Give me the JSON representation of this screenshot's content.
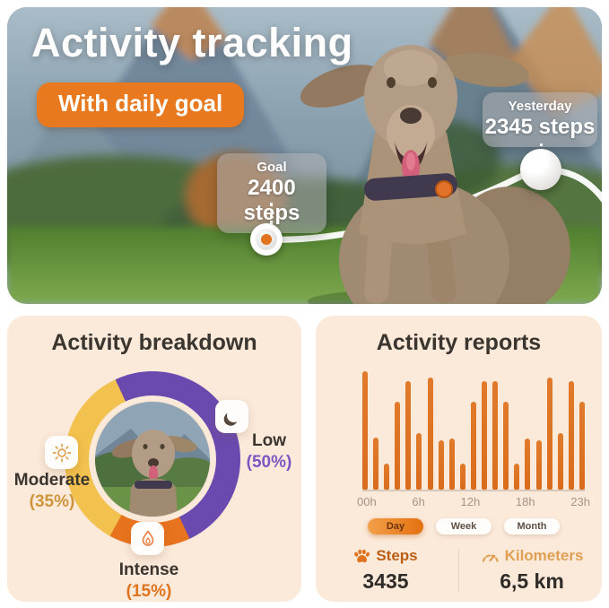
{
  "hero": {
    "title": "Activity tracking",
    "badge": "With daily goal",
    "goal_callout": {
      "label": "Goal",
      "value": "2400 steps"
    },
    "yesterday_callout": {
      "label": "Yesterday",
      "value": "2345 steps"
    },
    "badge_color": "#e8791f"
  },
  "breakdown": {
    "title": "Activity breakdown",
    "segments": [
      {
        "name": "Low",
        "pct": "(50%)",
        "icon": "moon-icon",
        "color": "#6b4aaf"
      },
      {
        "name": "Moderate",
        "pct": "(35%)",
        "icon": "sun-icon",
        "color": "#f2c14e"
      },
      {
        "name": "Intense",
        "pct": "(15%)",
        "icon": "flame-icon",
        "color": "#e8731e"
      }
    ]
  },
  "reports": {
    "title": "Activity reports",
    "tabs": [
      {
        "label": "Day",
        "active": true
      },
      {
        "label": "Week",
        "active": false
      },
      {
        "label": "Month",
        "active": false
      }
    ],
    "stats": [
      {
        "label": "Steps",
        "value": "3435",
        "icon": "paw-icon"
      },
      {
        "label": "Kilometers",
        "value": "6,5 km",
        "icon": "gauge-icon"
      }
    ]
  },
  "chart_data": [
    {
      "type": "pie",
      "title": "Activity breakdown",
      "labels": [
        "Low",
        "Intense",
        "Moderate"
      ],
      "values": [
        50,
        15,
        35
      ],
      "colors": [
        "#6b4aaf",
        "#e8731e",
        "#f2c14e"
      ],
      "start_angle_deg": -25,
      "donut": true,
      "legend_position": "around"
    },
    {
      "type": "bar",
      "title": "Activity reports",
      "x": [
        0,
        1,
        2,
        3,
        4,
        5,
        6,
        7,
        8,
        9,
        10,
        11,
        12,
        13,
        14,
        15,
        16,
        17,
        18,
        19,
        20
      ],
      "values": [
        100,
        44,
        22,
        74,
        92,
        48,
        95,
        42,
        43,
        22,
        74,
        92,
        92,
        74,
        22,
        43,
        42,
        95,
        48,
        92,
        74
      ],
      "values_unit": "relative_0_100",
      "tick_labels": [
        "00h",
        "6h",
        "12h",
        "18h",
        "23h"
      ],
      "bar_color": "#db6e20",
      "grid": false,
      "ylim": [
        0,
        100
      ]
    }
  ]
}
